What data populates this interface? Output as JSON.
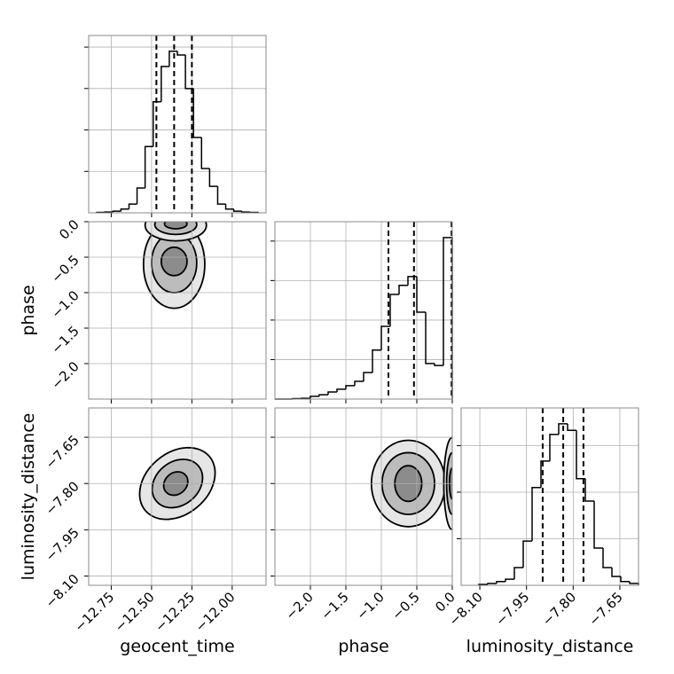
{
  "chart_data": {
    "type": "corner",
    "grid": true,
    "color": "#000000",
    "grid_color": "#b0b0b0",
    "contour_colors": [
      "#e6e6e6",
      "#bcbcbc",
      "#8c8c8c"
    ],
    "parameters": [
      {
        "name": "geocent_time",
        "lim": [
          -12.89,
          -11.79
        ],
        "ticks": [
          {
            "value": -12.75,
            "label": "−12.75"
          },
          {
            "value": -12.5,
            "label": "−12.50"
          },
          {
            "value": -12.25,
            "label": "−12.25"
          },
          {
            "value": -12.0,
            "label": "−12.00"
          }
        ],
        "hist": {
          "bins": [
            -12.84,
            -12.79,
            -12.74,
            -12.69,
            -12.64,
            -12.59,
            -12.54,
            -12.49,
            -12.44,
            -12.39,
            -12.34,
            -12.29,
            -12.24,
            -12.19,
            -12.14,
            -12.09,
            -12.04,
            -11.99,
            -11.94,
            -11.89,
            -11.84
          ],
          "values": [
            0.01,
            0.02,
            0.04,
            0.09,
            0.21,
            0.6,
            1.6,
            2.68,
            3.53,
            3.9,
            3.81,
            3.0,
            1.82,
            1.07,
            0.64,
            0.21,
            0.09,
            0.04,
            0.02,
            0.01
          ],
          "ylim": [
            0,
            4.28
          ],
          "yticks": [
            1,
            2,
            3,
            4
          ]
        },
        "quantiles": [
          -12.47,
          -12.36,
          -12.25
        ]
      },
      {
        "name": "phase",
        "lim": [
          -2.5,
          0.0
        ],
        "ticks": [
          {
            "value": -2.0,
            "label": "−2.0"
          },
          {
            "value": -1.5,
            "label": "−1.5"
          },
          {
            "value": -1.0,
            "label": "−1.0"
          },
          {
            "value": -0.5,
            "label": "−0.5"
          },
          {
            "value": 0.0,
            "label": "0.0"
          }
        ],
        "hist": {
          "bins": [
            -2.5,
            -2.375,
            -2.25,
            -2.125,
            -2.0,
            -1.875,
            -1.75,
            -1.625,
            -1.5,
            -1.375,
            -1.25,
            -1.125,
            -1.0,
            -0.875,
            -0.75,
            -0.625,
            -0.5,
            -0.375,
            -0.25,
            -0.125,
            0.0
          ],
          "values": [
            0,
            0,
            0.01,
            0.02,
            0.07,
            0.11,
            0.18,
            0.25,
            0.34,
            0.45,
            0.67,
            1.24,
            1.84,
            2.65,
            2.88,
            3.1,
            2.2,
            0.9,
            0.85,
            4.09
          ],
          "ylim": [
            0,
            4.49
          ],
          "yticks": [
            1,
            2,
            3,
            4
          ]
        },
        "quantiles": [
          -0.9,
          -0.54,
          -0.01
        ]
      },
      {
        "name": "luminosity_distance",
        "lim": [
          -8.16,
          -7.59
        ],
        "ylim": [
          -8.13,
          -7.555
        ],
        "ticks": [
          {
            "value": -8.1,
            "label": "−8.10"
          },
          {
            "value": -7.95,
            "label": "−7.95"
          },
          {
            "value": -7.8,
            "label": "−7.80"
          },
          {
            "value": -7.65,
            "label": "−7.65"
          }
        ],
        "hist": {
          "bins": [
            -8.103,
            -8.0745,
            -8.046,
            -8.0175,
            -7.989,
            -7.9605,
            -7.932,
            -7.9035,
            -7.875,
            -7.8465,
            -7.818,
            -7.7895,
            -7.761,
            -7.7325,
            -7.704,
            -7.6755,
            -7.647,
            -7.6185,
            -7.59
          ],
          "values": [
            0.02,
            0.04,
            0.08,
            0.13,
            0.38,
            0.95,
            2.1,
            2.67,
            3.24,
            3.47,
            3.33,
            2.29,
            1.81,
            0.8,
            0.38,
            0.19,
            0.08,
            0.04
          ],
          "ylim": [
            0,
            3.81
          ],
          "yticks": [
            1,
            2,
            3
          ]
        },
        "quantiles": [
          -7.898,
          -7.832,
          -7.767
        ]
      }
    ],
    "pairs": [
      {
        "contours": [
          {
            "cx": -12.36,
            "cy": -0.6,
            "rx": 0.19,
            "ry": 0.62,
            "angle": 0
          },
          {
            "cx": -12.36,
            "cy": -0.58,
            "rx": 0.14,
            "ry": 0.42,
            "angle": 0
          },
          {
            "cx": -12.36,
            "cy": -0.56,
            "rx": 0.08,
            "ry": 0.2,
            "angle": 0
          },
          {
            "cx": -12.35,
            "cy": -0.05,
            "rx": 0.19,
            "ry": 0.22,
            "angle": 0
          },
          {
            "cx": -12.35,
            "cy": -0.04,
            "rx": 0.13,
            "ry": 0.14,
            "angle": 0
          },
          {
            "cx": -12.35,
            "cy": -0.03,
            "rx": 0.07,
            "ry": 0.07,
            "angle": 0
          }
        ]
      },
      {
        "contours": [
          {
            "cx": -12.34,
            "cy": -7.8,
            "rx": 0.26,
            "ry": 0.1,
            "angle": -40
          },
          {
            "cx": -12.34,
            "cy": -7.8,
            "rx": 0.17,
            "ry": 0.07,
            "angle": -40
          },
          {
            "cx": -12.35,
            "cy": -7.8,
            "rx": 0.08,
            "ry": 0.035,
            "angle": -40
          }
        ]
      },
      {
        "contours": [
          {
            "cx": -0.62,
            "cy": -7.8,
            "rx": 0.52,
            "ry": 0.14,
            "angle": 0
          },
          {
            "cx": -0.62,
            "cy": -7.8,
            "rx": 0.37,
            "ry": 0.1,
            "angle": 0
          },
          {
            "cx": -0.62,
            "cy": -7.8,
            "rx": 0.19,
            "ry": 0.058,
            "angle": 0
          },
          {
            "cx": 0.0,
            "cy": -7.8,
            "rx": 0.12,
            "ry": 0.15,
            "angle": 0
          },
          {
            "cx": 0.0,
            "cy": -7.8,
            "rx": 0.08,
            "ry": 0.1,
            "angle": 0
          },
          {
            "cx": 0.0,
            "cy": -7.8,
            "rx": 0.04,
            "ry": 0.05,
            "angle": 0
          }
        ]
      }
    ]
  }
}
